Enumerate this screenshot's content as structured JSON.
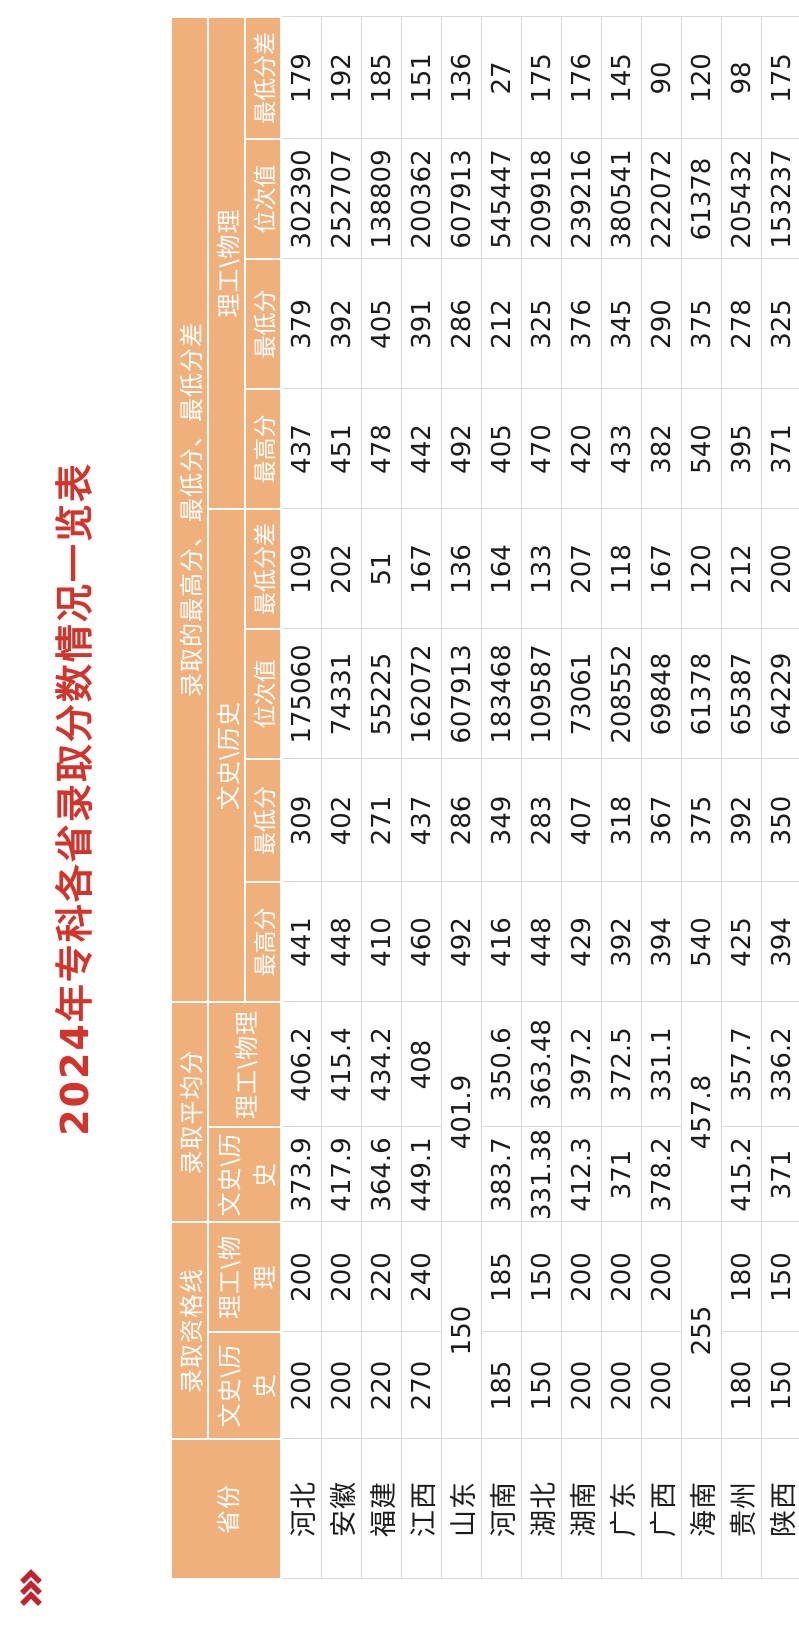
{
  "title": "2024年专科各省录取分数情况一览表",
  "brand_icon": "triple-chevron-right",
  "colors": {
    "header_bg": "#efb07c",
    "title_red": "#d2342c",
    "chevron_red": "#bf2430",
    "grid_line": "#d9d9d9"
  },
  "table": {
    "headers": {
      "province": "省份",
      "qual_group": "录取资格线",
      "avg_group": "录取平均分",
      "minmax_group": "录取的最高分、最低分、最低分差",
      "subjects": [
        "文史\\历史",
        "理工\\物理"
      ],
      "leaves": [
        "最高分",
        "最低分",
        "位次值",
        "最低分差"
      ]
    },
    "rows": [
      {
        "province": "河北",
        "qual": [
          "200",
          "200"
        ],
        "avg": [
          "373.9",
          "406.2"
        ],
        "wenshi": [
          "441",
          "309",
          "175060",
          "109"
        ],
        "ligong": [
          "437",
          "379",
          "302390",
          "179"
        ]
      },
      {
        "province": "安徽",
        "qual": [
          "200",
          "200"
        ],
        "avg": [
          "417.9",
          "415.4"
        ],
        "wenshi": [
          "448",
          "402",
          "74331",
          "202"
        ],
        "ligong": [
          "451",
          "392",
          "252707",
          "192"
        ]
      },
      {
        "province": "福建",
        "qual": [
          "220",
          "220"
        ],
        "avg": [
          "364.6",
          "434.2"
        ],
        "wenshi": [
          "410",
          "271",
          "55225",
          "51"
        ],
        "ligong": [
          "478",
          "405",
          "138809",
          "185"
        ]
      },
      {
        "province": "江西",
        "qual": [
          "270",
          "240"
        ],
        "avg": [
          "449.1",
          "408"
        ],
        "wenshi": [
          "460",
          "437",
          "162072",
          "167"
        ],
        "ligong": [
          "442",
          "391",
          "200362",
          "151"
        ]
      },
      {
        "province": "山东",
        "qual_merged": "150",
        "avg_merged": "401.9",
        "wenshi": [
          "492",
          "286",
          "607913",
          "136"
        ],
        "ligong": [
          "492",
          "286",
          "607913",
          "136"
        ]
      },
      {
        "province": "河南",
        "qual": [
          "185",
          "185"
        ],
        "avg": [
          "383.7",
          "350.6"
        ],
        "wenshi": [
          "416",
          "349",
          "183468",
          "164"
        ],
        "ligong": [
          "405",
          "212",
          "545447",
          "27"
        ]
      },
      {
        "province": "湖北",
        "qual": [
          "150",
          "150"
        ],
        "avg": [
          "331.38",
          "363.48"
        ],
        "wenshi": [
          "448",
          "283",
          "109587",
          "133"
        ],
        "ligong": [
          "470",
          "325",
          "209918",
          "175"
        ]
      },
      {
        "province": "湖南",
        "qual": [
          "200",
          "200"
        ],
        "avg": [
          "412.3",
          "397.2"
        ],
        "wenshi": [
          "429",
          "407",
          "73061",
          "207"
        ],
        "ligong": [
          "420",
          "376",
          "239216",
          "176"
        ]
      },
      {
        "province": "广东",
        "qual": [
          "200",
          "200"
        ],
        "avg": [
          "371",
          "372.5"
        ],
        "wenshi": [
          "392",
          "318",
          "208552",
          "118"
        ],
        "ligong": [
          "433",
          "345",
          "380541",
          "145"
        ]
      },
      {
        "province": "广西",
        "qual": [
          "200",
          "200"
        ],
        "avg": [
          "378.2",
          "331.1"
        ],
        "wenshi": [
          "394",
          "367",
          "69848",
          "167"
        ],
        "ligong": [
          "382",
          "290",
          "222072",
          "90"
        ]
      },
      {
        "province": "海南",
        "qual_merged": "255",
        "avg_merged": "457.8",
        "wenshi": [
          "540",
          "375",
          "61378",
          "120"
        ],
        "ligong": [
          "540",
          "375",
          "61378",
          "120"
        ]
      },
      {
        "province": "贵州",
        "qual": [
          "180",
          "180"
        ],
        "avg": [
          "415.2",
          "357.7"
        ],
        "wenshi": [
          "425",
          "392",
          "65387",
          "212"
        ],
        "ligong": [
          "395",
          "278",
          "205432",
          "98"
        ]
      },
      {
        "province": "陕西",
        "qual": [
          "150",
          "150"
        ],
        "avg": [
          "371",
          "336.2"
        ],
        "wenshi": [
          "394",
          "350",
          "64229",
          "200"
        ],
        "ligong": [
          "371",
          "325",
          "153237",
          "175"
        ]
      }
    ]
  }
}
